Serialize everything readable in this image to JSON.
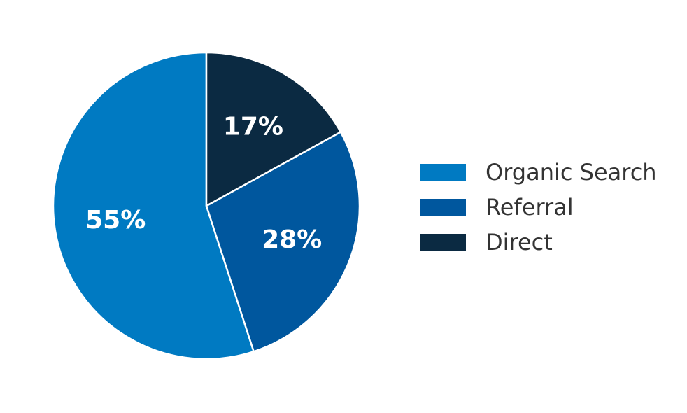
{
  "chart_data": {
    "type": "pie",
    "title": "",
    "legend_position": "right",
    "slices": [
      {
        "name": "Organic Search",
        "value": 55,
        "label": "55%",
        "color": "#007AC2"
      },
      {
        "name": "Referral",
        "value": 28,
        "label": "28%",
        "color": "#00579E"
      },
      {
        "name": "Direct",
        "value": 17,
        "label": "17%",
        "color": "#0B2A42"
      }
    ],
    "start_angle": "12 o'clock",
    "direction": "counterclockwise"
  },
  "legend": {
    "items": [
      {
        "label": "Organic Search",
        "color": "#007AC2"
      },
      {
        "label": "Referral",
        "color": "#00579E"
      },
      {
        "label": "Direct",
        "color": "#0B2A42"
      }
    ]
  }
}
